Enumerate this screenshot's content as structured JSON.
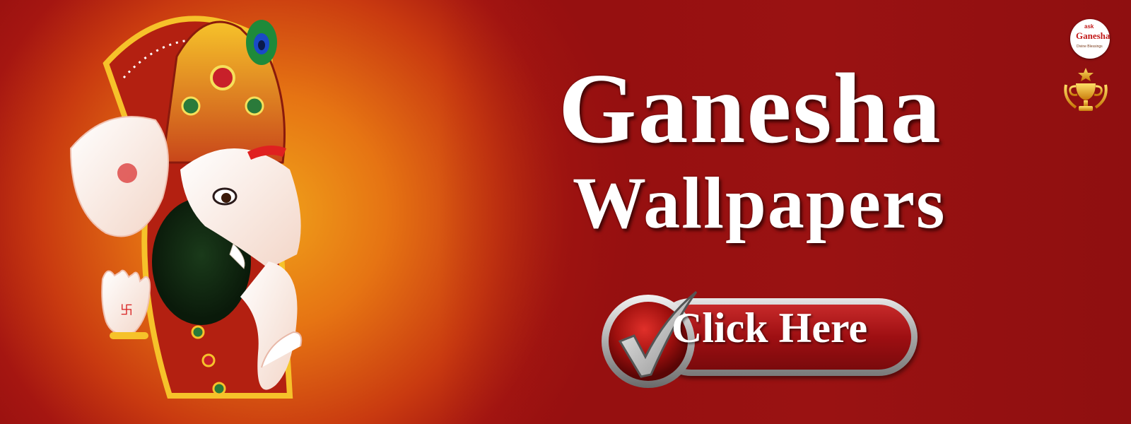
{
  "banner": {
    "title_line_1": "Ganesha",
    "title_line_2": "Wallpapers",
    "cta_label": "Click Here",
    "cta_icon": "checkmark-icon"
  },
  "logo": {
    "ask": "ask",
    "name": "Ganesha",
    "tagline": "Divine Blessings"
  },
  "badge": {
    "icon": "trophy-icon"
  },
  "illustration": {
    "icon": "ganesha-illustration"
  },
  "colors": {
    "background_center": "#f0a21a",
    "background_edge": "#960f10",
    "button_red": "#9e0f12",
    "button_silver": "#a9a9a9",
    "title_text": "#ffffff",
    "logo_red": "#c21a1a",
    "trophy_gold": "#e8a317"
  }
}
